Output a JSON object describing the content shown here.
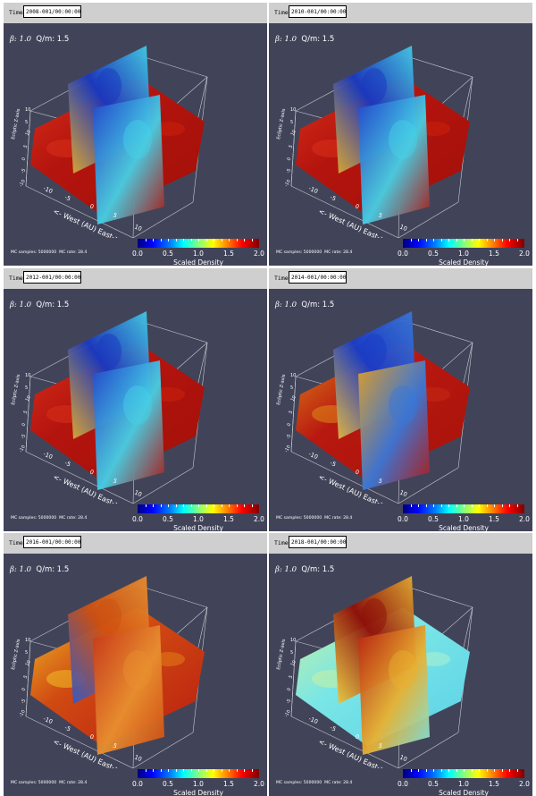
{
  "panels": [
    {
      "time_label": "Time:",
      "time_value": "2008-001/00:00:00",
      "beta": "β: 1.0",
      "qm": "Q/m: 1.5",
      "mc_samples": "MC samples: 5000000",
      "mc_rate": "MC rate: 28.4"
    },
    {
      "time_label": "Time:",
      "time_value": "2010-001/00:00:00",
      "beta": "β: 1.0",
      "qm": "Q/m: 1.5",
      "mc_samples": "MC samples: 5000000",
      "mc_rate": "MC rate: 28.4"
    },
    {
      "time_label": "Time:",
      "time_value": "2012-001/00:00:00",
      "beta": "β: 1.0",
      "qm": "Q/m: 1.5",
      "mc_samples": "MC samples: 5000000",
      "mc_rate": "MC rate: 28.4"
    },
    {
      "time_label": "Time:",
      "time_value": "2014-001/00:00:00",
      "beta": "β: 1.0",
      "qm": "Q/m: 1.5",
      "mc_samples": "MC samples: 5000000",
      "mc_rate": "MC rate: 28.4"
    },
    {
      "time_label": "Time:",
      "time_value": "2016-001/00:00:00",
      "beta": "β: 1.0",
      "qm": "Q/m: 1.5",
      "mc_samples": "MC samples: 5000000",
      "mc_rate": "MC rate: 28.4"
    },
    {
      "time_label": "Time:",
      "time_value": "2018-001/00:00:00",
      "beta": "β: 1.0",
      "qm": "Q/m: 1.5",
      "mc_samples": "MC samples: 5000000",
      "mc_rate": "MC rate: 28.4"
    }
  ],
  "colorbar": {
    "title": "Scaled Density",
    "labels": [
      "0.0",
      "0.5",
      "1.0",
      "1.5",
      "2.0"
    ],
    "colormap": "jet",
    "min": 0.0,
    "max": 2.0
  },
  "axes": {
    "x_axis_label": "<- West (AU) East-> X-axis",
    "x_ticks": [
      "-10",
      "-5",
      "0",
      "5",
      "10"
    ],
    "y_ticks": [
      "-10",
      "-5",
      "0",
      "5",
      "10"
    ],
    "z_axis_label": "Ecliptic Z-axis",
    "z_ticks": [
      "10",
      "5"
    ]
  },
  "colors": {
    "background": "#414459",
    "timebar": "#cfcfcf",
    "density_high": "#b4140e",
    "density_low": "#1030b0"
  },
  "panel_styles": [
    "red",
    "red",
    "red",
    "mixed",
    "orange",
    "cyan"
  ]
}
